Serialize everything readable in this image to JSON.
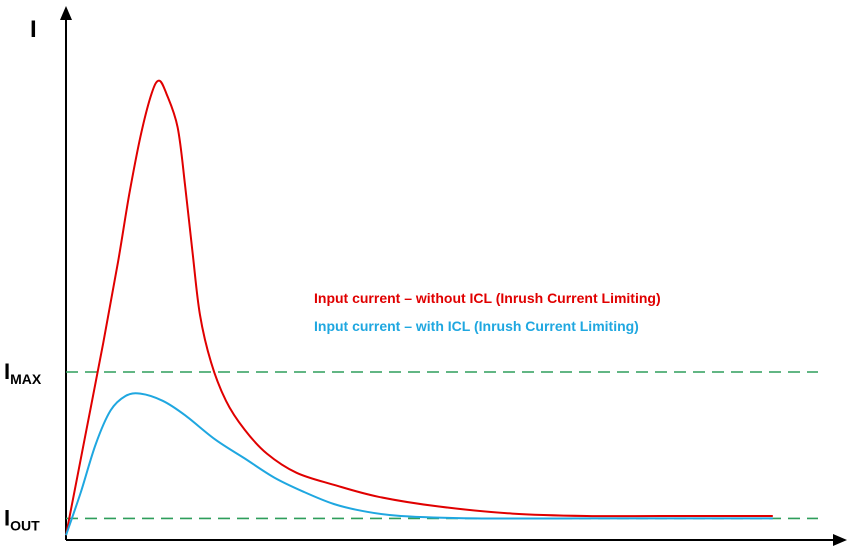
{
  "chart_data": {
    "type": "line",
    "title": "",
    "xlabel": "",
    "ylabel": "I",
    "y_markers": [
      {
        "base": "I",
        "sub": "MAX",
        "value": 0.35,
        "line_color": "#2e9e5b",
        "dashed": true
      },
      {
        "base": "I",
        "sub": "OUT",
        "value": 0.045,
        "line_color": "#2e9e5b",
        "dashed": true
      }
    ],
    "xlim": [
      0,
      1
    ],
    "ylim": [
      0,
      1
    ],
    "grid": false,
    "legend_position": "center-right",
    "series": [
      {
        "name": "Input current – without ICL (Inrush Current Limiting)",
        "color": "#e00000",
        "points": [
          [
            0.0,
            0.01
          ],
          [
            0.025,
            0.21
          ],
          [
            0.05,
            0.41
          ],
          [
            0.07,
            0.58
          ],
          [
            0.085,
            0.72
          ],
          [
            0.1,
            0.84
          ],
          [
            0.115,
            0.93
          ],
          [
            0.125,
            0.957
          ],
          [
            0.135,
            0.93
          ],
          [
            0.15,
            0.86
          ],
          [
            0.16,
            0.74
          ],
          [
            0.17,
            0.6
          ],
          [
            0.18,
            0.47
          ],
          [
            0.195,
            0.37
          ],
          [
            0.215,
            0.29
          ],
          [
            0.24,
            0.23
          ],
          [
            0.27,
            0.18
          ],
          [
            0.31,
            0.14
          ],
          [
            0.36,
            0.115
          ],
          [
            0.42,
            0.09
          ],
          [
            0.5,
            0.07
          ],
          [
            0.6,
            0.055
          ],
          [
            0.7,
            0.05
          ],
          [
            0.8,
            0.05
          ],
          [
            0.95,
            0.05
          ]
        ]
      },
      {
        "name": "Input current – with ICL (Inrush Current Limiting)",
        "color": "#1fa7e0",
        "points": [
          [
            0.0,
            0.01
          ],
          [
            0.02,
            0.1
          ],
          [
            0.04,
            0.2
          ],
          [
            0.06,
            0.27
          ],
          [
            0.08,
            0.3
          ],
          [
            0.1,
            0.305
          ],
          [
            0.13,
            0.29
          ],
          [
            0.16,
            0.26
          ],
          [
            0.2,
            0.21
          ],
          [
            0.24,
            0.17
          ],
          [
            0.28,
            0.13
          ],
          [
            0.32,
            0.1
          ],
          [
            0.36,
            0.075
          ],
          [
            0.4,
            0.06
          ],
          [
            0.45,
            0.05
          ],
          [
            0.55,
            0.045
          ],
          [
            0.7,
            0.045
          ],
          [
            0.85,
            0.045
          ],
          [
            0.95,
            0.045
          ]
        ]
      }
    ]
  }
}
